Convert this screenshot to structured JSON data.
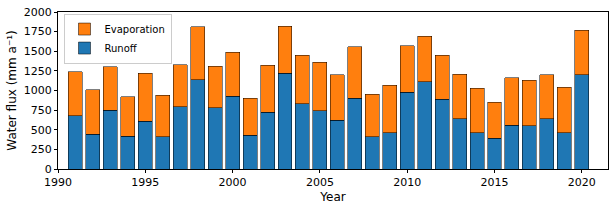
{
  "chart_data": {
    "type": "bar",
    "stacked": true,
    "x_label": "Year",
    "y_label": "Water flux (mm a⁻¹)",
    "x": [
      1991,
      1992,
      1993,
      1994,
      1995,
      1996,
      1997,
      1998,
      1999,
      2000,
      2001,
      2002,
      2003,
      2004,
      2005,
      2006,
      2007,
      2008,
      2009,
      2010,
      2011,
      2012,
      2013,
      2014,
      2015,
      2016,
      2017,
      2018,
      2019,
      2020
    ],
    "series": [
      {
        "name": "Runoff",
        "color": "#1f77b4",
        "values": [
          680,
          440,
          750,
          420,
          610,
          410,
          790,
          1140,
          780,
          930,
          430,
          720,
          1220,
          830,
          740,
          620,
          900,
          410,
          460,
          980,
          1110,
          890,
          640,
          460,
          390,
          560,
          550,
          640,
          460,
          1200
        ]
      },
      {
        "name": "Evaporation",
        "color": "#ff7f0e",
        "values": [
          560,
          570,
          550,
          500,
          610,
          530,
          540,
          670,
          530,
          560,
          470,
          600,
          600,
          620,
          620,
          580,
          660,
          540,
          610,
          590,
          580,
          560,
          570,
          570,
          460,
          600,
          580,
          560,
          580,
          570
        ]
      }
    ],
    "xlim": [
      1990,
      2021.5
    ],
    "xticks": [
      1990,
      1995,
      2000,
      2005,
      2010,
      2015,
      2020
    ],
    "ylim": [
      0,
      2000
    ],
    "yticks": [
      0,
      250,
      500,
      750,
      1000,
      1250,
      1500,
      1750,
      2000
    ],
    "grid": false,
    "legend": "upper left"
  }
}
